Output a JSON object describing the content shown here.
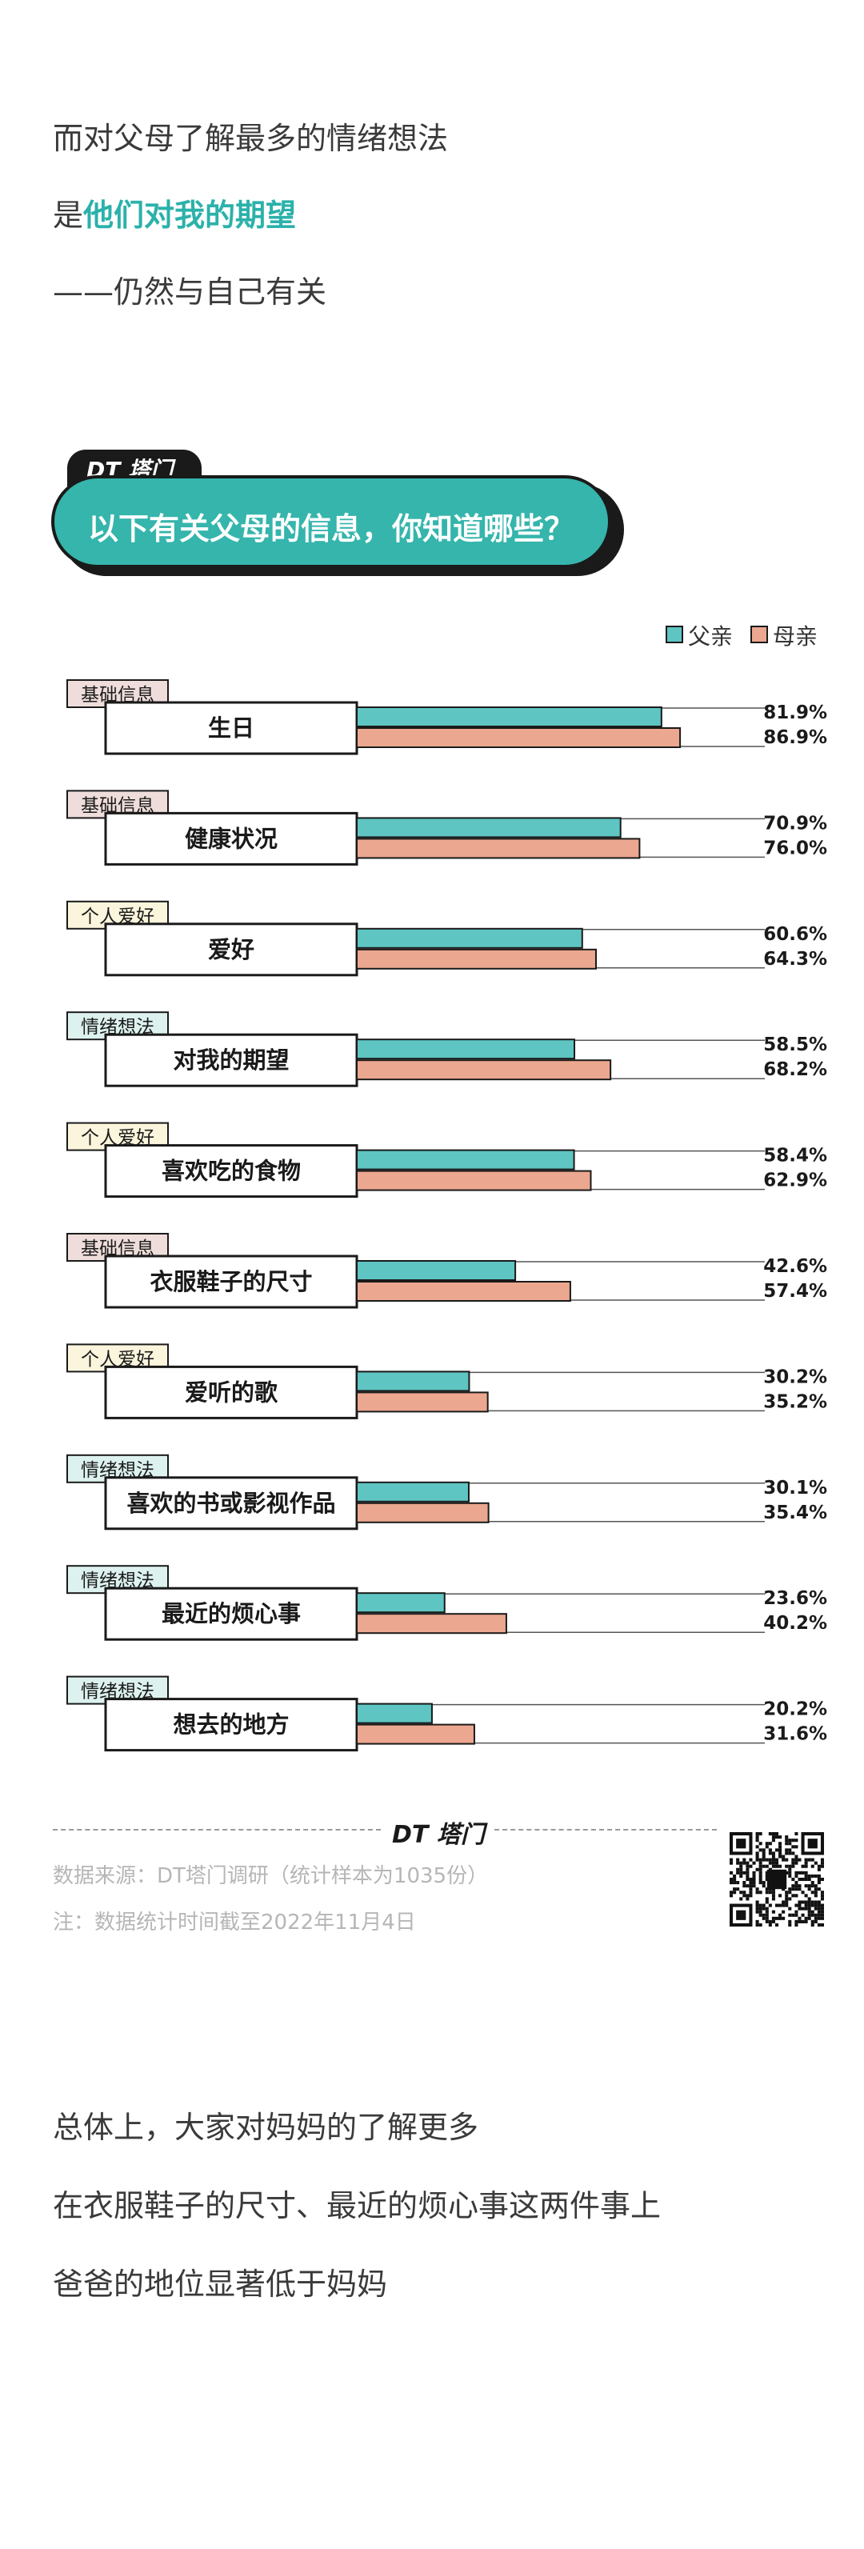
{
  "intro": {
    "line1": "而对父母了解最多的情绪想法",
    "line2_prefix": "是",
    "line2_highlight": "他们对我的期望",
    "line3": "——仍然与自己有关"
  },
  "header": {
    "logo": "DT 塔门",
    "title": "以下有关父母的信息，你知道哪些？"
  },
  "legend": {
    "father": "父亲",
    "mother": "母亲"
  },
  "colors": {
    "father": "#5ec5c2",
    "mother": "#eba78f",
    "tag_basic": "#eeddda",
    "tag_hobby": "#faf5dc",
    "tag_emotion": "#ddf2ef",
    "accent": "#35b5ac"
  },
  "chart_data": {
    "type": "bar",
    "orientation": "horizontal",
    "title": "以下有关父母的信息，你知道哪些？",
    "unit": "%",
    "xlim": [
      0,
      100
    ],
    "grid": false,
    "legend_position": "top-right",
    "categories": [
      "生日",
      "健康状况",
      "爱好",
      "对我的期望",
      "喜欢吃的食物",
      "衣服鞋子的尺寸",
      "爱听的歌",
      "喜欢的书或影视作品",
      "最近的烦心事",
      "想去的地方"
    ],
    "tags": [
      "基础信息",
      "基础信息",
      "个人爱好",
      "情绪想法",
      "个人爱好",
      "基础信息",
      "个人爱好",
      "情绪想法",
      "情绪想法",
      "情绪想法"
    ],
    "tag_types": [
      "basic",
      "basic",
      "hobby",
      "emotion",
      "hobby",
      "basic",
      "hobby",
      "emotion",
      "emotion",
      "emotion"
    ],
    "series": [
      {
        "name": "父亲",
        "values": [
          81.9,
          70.9,
          60.6,
          58.5,
          58.4,
          42.6,
          30.2,
          30.1,
          23.6,
          20.2
        ]
      },
      {
        "name": "母亲",
        "values": [
          86.9,
          76.0,
          64.3,
          68.2,
          62.9,
          57.4,
          35.2,
          35.4,
          40.2,
          31.6
        ]
      }
    ],
    "value_labels": [
      [
        "81.9%",
        "70.9%",
        "60.6%",
        "58.5%",
        "58.4%",
        "42.6%",
        "30.2%",
        "30.1%",
        "23.6%",
        "20.2%"
      ],
      [
        "86.9%",
        "76.0%",
        "64.3%",
        "68.2%",
        "62.9%",
        "57.4%",
        "35.2%",
        "35.4%",
        "40.2%",
        "31.6%"
      ]
    ]
  },
  "footer": {
    "logo": "DT 塔门",
    "source": "数据来源：DT塔门调研（统计样本为1035份）",
    "note": "注：数据统计时间截至2022年11月4日",
    "qr_icon": "qr-code-icon"
  },
  "outro": {
    "line1": "总体上，大家对妈妈的了解更多",
    "line2": "在衣服鞋子的尺寸、最近的烦心事这两件事上",
    "line3": "爸爸的地位显著低于妈妈"
  }
}
